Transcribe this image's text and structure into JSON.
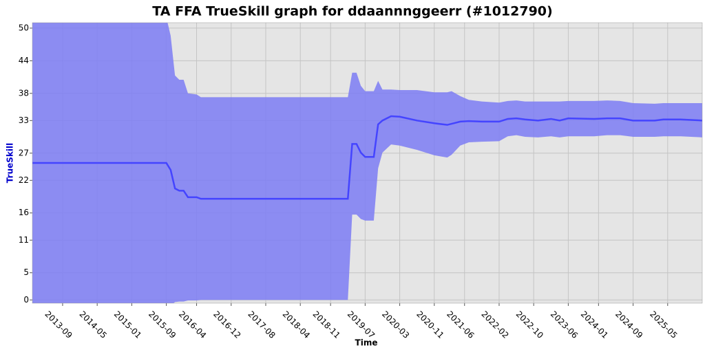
{
  "chart_data": {
    "type": "band-line",
    "title": "TA FFA TrueSkill graph for ddaannnggeerr (#1012790)",
    "x_label": "Time",
    "y_label": "TrueSkill",
    "x": [
      "2013-02",
      "2015-09",
      "2015-10",
      "2015-11",
      "2015-12",
      "2016-01",
      "2016-02",
      "2016-04",
      "2016-05",
      "2019-03",
      "2019-04",
      "2019-05",
      "2019-06",
      "2019-07",
      "2019-09",
      "2019-10",
      "2019-11",
      "2020-01",
      "2020-03",
      "2020-07",
      "2020-11",
      "2021-02",
      "2021-03",
      "2021-05",
      "2021-07",
      "2021-10",
      "2022-02",
      "2022-04",
      "2022-06",
      "2022-08",
      "2022-11",
      "2023-02",
      "2023-04",
      "2023-06",
      "2023-12",
      "2024-03",
      "2024-06",
      "2024-09",
      "2025-02",
      "2025-04",
      "2025-08",
      "2026-01"
    ],
    "values": [
      25.2,
      25.2,
      23.9,
      20.5,
      20.1,
      20.1,
      18.9,
      18.9,
      18.6,
      18.6,
      28.7,
      28.7,
      27.1,
      26.3,
      26.3,
      32.3,
      33.0,
      33.8,
      33.7,
      33.0,
      32.5,
      32.2,
      32.4,
      32.8,
      32.9,
      32.8,
      32.8,
      33.3,
      33.4,
      33.2,
      33.0,
      33.3,
      33.0,
      33.4,
      33.3,
      33.4,
      33.4,
      33.0,
      33.0,
      33.2,
      33.2,
      33.0
    ],
    "upper": [
      52,
      52,
      48.6,
      41.3,
      40.5,
      40.5,
      38.0,
      37.8,
      37.3,
      37.3,
      41.8,
      41.8,
      39.4,
      38.4,
      38.4,
      40.3,
      38.7,
      38.7,
      38.6,
      38.6,
      38.2,
      38.2,
      38.4,
      37.5,
      36.8,
      36.5,
      36.3,
      36.6,
      36.7,
      36.5,
      36.5,
      36.5,
      36.5,
      36.6,
      36.6,
      36.7,
      36.6,
      36.2,
      36.1,
      36.2,
      36.2,
      36.2
    ],
    "lower": [
      -1,
      -1,
      -1,
      -0.4,
      -0.3,
      -0.3,
      -0.1,
      -0.1,
      0,
      0,
      15.7,
      15.7,
      14.9,
      14.6,
      14.6,
      24.2,
      27.1,
      28.6,
      28.4,
      27.6,
      26.6,
      26.2,
      26.7,
      28.4,
      29.0,
      29.1,
      29.2,
      30.1,
      30.3,
      30.0,
      29.9,
      30.1,
      29.9,
      30.1,
      30.1,
      30.3,
      30.3,
      30.0,
      30.0,
      30.1,
      30.1,
      29.9
    ],
    "line_color": "#4444ff",
    "band_color": "#7c7cf4",
    "xlim": [
      "2013-02",
      "2026-01"
    ],
    "xticks": [
      "2013-09",
      "2014-05",
      "2015-01",
      "2015-09",
      "2016-04",
      "2016-12",
      "2017-08",
      "2018-04",
      "2018-11",
      "2019-07",
      "2020-03",
      "2020-11",
      "2021-06",
      "2022-02",
      "2022-10",
      "2023-06",
      "2024-01",
      "2024-09",
      "2025-05"
    ],
    "ylim": [
      -0.6,
      51
    ],
    "yticks": [
      0,
      5,
      11,
      16,
      22,
      27,
      33,
      38,
      44,
      50
    ],
    "grid": true
  }
}
